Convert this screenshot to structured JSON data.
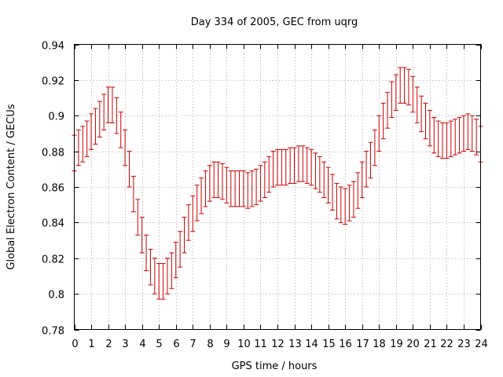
{
  "chart_data": {
    "type": "line",
    "title": "Day 334 of 2005, GEC from uqrg",
    "xlabel": "GPS time / hours",
    "ylabel": "Global Electron Content / GECUs",
    "xlim": [
      0,
      24
    ],
    "ylim": [
      0.78,
      0.94
    ],
    "xticks": [
      0,
      1,
      2,
      3,
      4,
      5,
      6,
      7,
      8,
      9,
      10,
      11,
      12,
      13,
      14,
      15,
      16,
      17,
      18,
      19,
      20,
      21,
      22,
      23,
      24
    ],
    "yticks": [
      0.78,
      0.8,
      0.82,
      0.84,
      0.86,
      0.88,
      0.9,
      0.92,
      0.94
    ],
    "ytick_labels": [
      "0.78",
      "0.8",
      "0.82",
      "0.84",
      "0.86",
      "0.88",
      "0.9",
      "0.92",
      "0.94"
    ],
    "grid": true,
    "color": "#cc0000",
    "series": [
      {
        "style": "errorbars",
        "x": [
          0,
          0.25,
          0.5,
          0.75,
          1,
          1.25,
          1.5,
          1.75,
          2,
          2.25,
          2.5,
          2.75,
          3,
          3.25,
          3.5,
          3.75,
          4,
          4.25,
          4.5,
          4.75,
          5,
          5.25,
          5.5,
          5.75,
          6,
          6.25,
          6.5,
          6.75,
          7,
          7.25,
          7.5,
          7.75,
          8,
          8.25,
          8.5,
          8.75,
          9,
          9.25,
          9.5,
          9.75,
          10,
          10.25,
          10.5,
          10.75,
          11,
          11.25,
          11.5,
          11.75,
          12,
          12.25,
          12.5,
          12.75,
          13,
          13.25,
          13.5,
          13.75,
          14,
          14.25,
          14.5,
          14.75,
          15,
          15.25,
          15.5,
          15.75,
          16,
          16.25,
          16.5,
          16.75,
          17,
          17.25,
          17.5,
          17.75,
          18,
          18.25,
          18.5,
          18.75,
          19,
          19.25,
          19.5,
          19.75,
          20,
          20.25,
          20.5,
          20.75,
          21,
          21.25,
          21.5,
          21.75,
          22,
          22.25,
          22.5,
          22.75,
          23,
          23.25,
          23.5,
          23.75,
          24
        ],
        "y": [
          0.879,
          0.882,
          0.884,
          0.887,
          0.891,
          0.894,
          0.898,
          0.902,
          0.906,
          0.906,
          0.9,
          0.892,
          0.882,
          0.87,
          0.856,
          0.843,
          0.833,
          0.823,
          0.815,
          0.81,
          0.807,
          0.807,
          0.81,
          0.813,
          0.819,
          0.825,
          0.833,
          0.84,
          0.845,
          0.851,
          0.855,
          0.859,
          0.862,
          0.864,
          0.864,
          0.863,
          0.861,
          0.859,
          0.859,
          0.859,
          0.859,
          0.858,
          0.859,
          0.86,
          0.862,
          0.864,
          0.867,
          0.87,
          0.871,
          0.871,
          0.871,
          0.872,
          0.872,
          0.873,
          0.873,
          0.872,
          0.871,
          0.869,
          0.867,
          0.864,
          0.861,
          0.857,
          0.852,
          0.85,
          0.849,
          0.851,
          0.853,
          0.858,
          0.864,
          0.87,
          0.875,
          0.882,
          0.89,
          0.897,
          0.903,
          0.909,
          0.913,
          0.917,
          0.917,
          0.916,
          0.912,
          0.906,
          0.901,
          0.897,
          0.893,
          0.889,
          0.887,
          0.886,
          0.886,
          0.887,
          0.888,
          0.889,
          0.89,
          0.891,
          0.89,
          0.888,
          0.884
        ],
        "error": 0.01
      }
    ]
  }
}
